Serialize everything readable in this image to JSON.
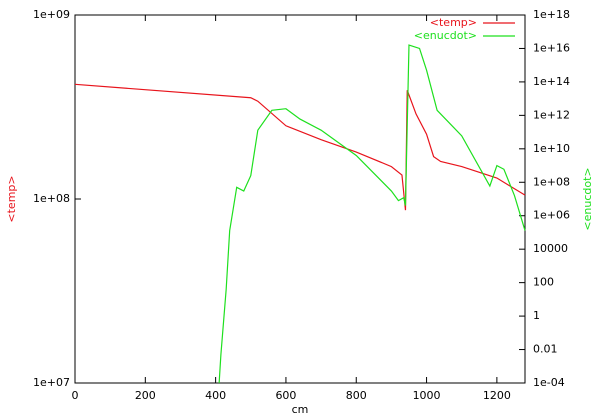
{
  "chart_data": {
    "type": "line",
    "xlabel": "cm",
    "ylabel": "<temp>",
    "y2label": "<enucdot>",
    "xlim": [
      0,
      1280
    ],
    "xticks": [
      0,
      200,
      400,
      600,
      800,
      1000,
      1200
    ],
    "ylim": [
      10000000,
      1000000000
    ],
    "ylog": true,
    "yticks": [
      {
        "value": 10000000,
        "label": "1e+07"
      },
      {
        "value": 100000000,
        "label": "1e+08"
      },
      {
        "value": 1000000000,
        "label": "1e+09"
      }
    ],
    "y2lim": [
      0.0001,
      1e+18
    ],
    "y2log": true,
    "y2ticks": [
      {
        "value": 0.0001,
        "label": "1e-04"
      },
      0.01,
      1,
      100,
      10000,
      {
        "value": 1000000,
        "label": "1e+06"
      },
      {
        "value": 100000000,
        "label": "1e+08"
      },
      {
        "value": 10000000000,
        "label": "1e+10"
      },
      {
        "value": 1000000000000,
        "label": "1e+12"
      },
      {
        "value": 100000000000000,
        "label": "1e+14"
      },
      {
        "value": 1e+16,
        "label": "1e+16"
      },
      {
        "value": 1e+18,
        "label": "1e+18"
      }
    ],
    "legend": "upper right",
    "series": [
      {
        "name": "<temp>",
        "color": "#e8141c",
        "axis": "y",
        "x": [
          0,
          500,
          520,
          600,
          700,
          800,
          900,
          930,
          940,
          945,
          970,
          1000,
          1020,
          1040,
          1100,
          1200,
          1280
        ],
        "values": [
          420000000,
          355000000,
          340000000,
          250000000,
          210000000,
          180000000,
          150000000,
          135000000,
          87000000,
          390000000,
          290000000,
          225000000,
          170000000,
          160000000,
          150000000,
          130000000,
          105000000
        ]
      },
      {
        "name": "<enucdot>",
        "color": "#1ee01e",
        "axis": "y2",
        "x": [
          410,
          415,
          430,
          440,
          460,
          480,
          500,
          520,
          560,
          600,
          640,
          700,
          800,
          900,
          920,
          935,
          940,
          950,
          980,
          1000,
          1030,
          1100,
          1180,
          1200,
          1220,
          1250,
          1280
        ],
        "values": [
          0.0001,
          0.005,
          40,
          130000,
          50000000,
          30000000,
          250000000,
          130000000000,
          2000000000000,
          2500000000000,
          600000000000,
          130000000000,
          4000000000,
          30000000,
          8000000,
          12000000,
          4000000,
          1.6e+16,
          1e+16,
          500000000000000,
          2000000000000,
          60000000000,
          60000000,
          1000000000,
          600000000,
          16000000,
          130000
        ]
      }
    ]
  }
}
